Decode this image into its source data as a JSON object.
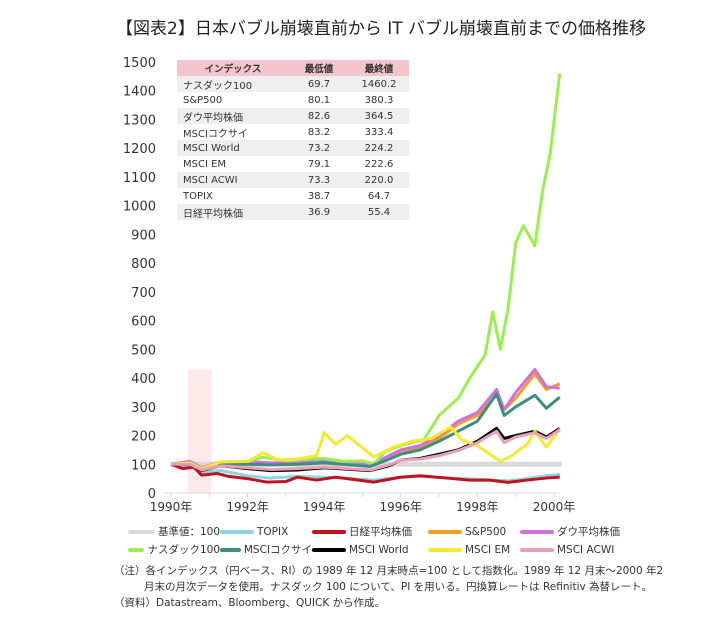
{
  "title": "【図表2】日本バブル崩壊直前から IT バブル崩壊直前までの価格推移",
  "table": {
    "headers": [
      "インデックス",
      "最低値",
      "最終値"
    ],
    "rows": [
      [
        "ナスダック100",
        "69.7",
        "1460.2"
      ],
      [
        "S&P500",
        "80.1",
        "380.3"
      ],
      [
        "ダウ平均株価",
        "82.6",
        "364.5"
      ],
      [
        "MSCIコクサイ",
        "83.2",
        "333.4"
      ],
      [
        "MSCI World",
        "73.2",
        "224.2"
      ],
      [
        "MSCI EM",
        "79.1",
        "222.6"
      ],
      [
        "MSCI ACWI",
        "73.3",
        "220.0"
      ],
      [
        "TOPIX",
        "38.7",
        "64.7"
      ],
      [
        "日経平均株価",
        "36.9",
        "55.4"
      ]
    ]
  },
  "notes": [
    "（注）各インデックス（円ベース、RI）の 1989 年 12 月末時点=100 として指数化。1989 年 12 月末～2000 年2",
    "月末の月次データを使用。ナスダック 100 について、PI を用いる。円換算レートは Refinitiv 為替レート。",
    "（資料）Datastream、Bloomberg、QUICK から作成。"
  ],
  "chart_data": {
    "type": "line",
    "ylim": [
      0,
      1500
    ],
    "yticks": [
      0,
      100,
      200,
      300,
      400,
      500,
      600,
      700,
      800,
      900,
      1000,
      1100,
      1200,
      1300,
      1400,
      1500
    ],
    "xlim": [
      1990,
      2000.2
    ],
    "xticks": [
      "1990年",
      "1992年",
      "1994年",
      "1996年",
      "1998年",
      "2000年"
    ],
    "xtick_values": [
      1990,
      1992,
      1994,
      1996,
      1998,
      2000
    ],
    "shaded_region": [
      1990.45,
      1991.05
    ],
    "shade_color": "#fde8ea",
    "legend_placement": "bottom",
    "series": [
      {
        "name": "基準値：100",
        "color": "#d9d9d9",
        "points": [
          [
            1990,
            100
          ],
          [
            2000.2,
            100
          ]
        ]
      },
      {
        "name": "TOPIX",
        "color": "#8fd3e8",
        "points": [
          [
            1990,
            100
          ],
          [
            1990.5,
            90
          ],
          [
            1990.8,
            72
          ],
          [
            1991.3,
            78
          ],
          [
            1992,
            60
          ],
          [
            1992.6,
            52
          ],
          [
            1993.3,
            58
          ],
          [
            1994,
            55
          ],
          [
            1994.5,
            52
          ],
          [
            1995.3,
            45
          ],
          [
            1996,
            55
          ],
          [
            1996.5,
            58
          ],
          [
            1997.3,
            52
          ],
          [
            1998,
            48
          ],
          [
            1998.8,
            42
          ],
          [
            1999.3,
            50
          ],
          [
            1999.8,
            60
          ],
          [
            2000.15,
            64.7
          ]
        ]
      },
      {
        "name": "日経平均株価",
        "color": "#c0141c",
        "points": [
          [
            1990,
            100
          ],
          [
            1990.3,
            85
          ],
          [
            1990.6,
            90
          ],
          [
            1990.8,
            62
          ],
          [
            1991.2,
            68
          ],
          [
            1991.5,
            58
          ],
          [
            1992,
            50
          ],
          [
            1992.5,
            38
          ],
          [
            1993,
            40
          ],
          [
            1993.3,
            55
          ],
          [
            1993.8,
            45
          ],
          [
            1994.3,
            55
          ],
          [
            1995.3,
            38
          ],
          [
            1996,
            55
          ],
          [
            1996.5,
            60
          ],
          [
            1997.2,
            52
          ],
          [
            1997.8,
            45
          ],
          [
            1998.3,
            45
          ],
          [
            1998.8,
            37
          ],
          [
            1999.3,
            45
          ],
          [
            1999.8,
            52
          ],
          [
            2000.15,
            55.4
          ]
        ]
      },
      {
        "name": "S&P500",
        "color": "#f0a020",
        "points": [
          [
            1990,
            100
          ],
          [
            1990.5,
            108
          ],
          [
            1990.8,
            85
          ],
          [
            1991.3,
            105
          ],
          [
            1992,
            105
          ],
          [
            1992.6,
            100
          ],
          [
            1993.3,
            100
          ],
          [
            1994,
            105
          ],
          [
            1995.2,
            95
          ],
          [
            1995.7,
            125
          ],
          [
            1996,
            145
          ],
          [
            1996.5,
            160
          ],
          [
            1997,
            190
          ],
          [
            1997.5,
            240
          ],
          [
            1998,
            270
          ],
          [
            1998.5,
            340
          ],
          [
            1998.7,
            290
          ],
          [
            1999,
            330
          ],
          [
            1999.5,
            415
          ],
          [
            1999.8,
            360
          ],
          [
            2000.15,
            380.3
          ]
        ]
      },
      {
        "name": "ダウ平均株価",
        "color": "#d070e0",
        "points": [
          [
            1990,
            100
          ],
          [
            1990.5,
            110
          ],
          [
            1990.8,
            88
          ],
          [
            1991.3,
            108
          ],
          [
            1992,
            110
          ],
          [
            1992.6,
            105
          ],
          [
            1993.3,
            108
          ],
          [
            1994,
            112
          ],
          [
            1995.2,
            98
          ],
          [
            1995.7,
            130
          ],
          [
            1996,
            150
          ],
          [
            1996.5,
            165
          ],
          [
            1997,
            200
          ],
          [
            1997.5,
            250
          ],
          [
            1998,
            280
          ],
          [
            1998.5,
            360
          ],
          [
            1998.7,
            290
          ],
          [
            1999,
            350
          ],
          [
            1999.5,
            430
          ],
          [
            1999.8,
            370
          ],
          [
            2000.15,
            364.5
          ]
        ]
      },
      {
        "name": "ナスダック100",
        "color": "#99ee50",
        "points": [
          [
            1990,
            100
          ],
          [
            1990.5,
            105
          ],
          [
            1990.8,
            80
          ],
          [
            1991.2,
            100
          ],
          [
            1992,
            110
          ],
          [
            1992.4,
            125
          ],
          [
            1993,
            112
          ],
          [
            1993.6,
            118
          ],
          [
            1994,
            120
          ],
          [
            1994.5,
            110
          ],
          [
            1995,
            112
          ],
          [
            1995.3,
            100
          ],
          [
            1995.6,
            145
          ],
          [
            1996,
            165
          ],
          [
            1996.6,
            185
          ],
          [
            1997,
            270
          ],
          [
            1997.5,
            330
          ],
          [
            1997.8,
            400
          ],
          [
            1998.2,
            480
          ],
          [
            1998.4,
            630
          ],
          [
            1998.6,
            500
          ],
          [
            1998.8,
            640
          ],
          [
            1999,
            870
          ],
          [
            1999.2,
            930
          ],
          [
            1999.5,
            860
          ],
          [
            1999.7,
            1050
          ],
          [
            1999.9,
            1180
          ],
          [
            2000.15,
            1460.2
          ]
        ]
      },
      {
        "name": "MSCIコクサイ",
        "color": "#3a9080",
        "points": [
          [
            1990,
            100
          ],
          [
            1990.5,
            105
          ],
          [
            1990.8,
            85
          ],
          [
            1991.3,
            100
          ],
          [
            1992,
            100
          ],
          [
            1992.6,
            98
          ],
          [
            1993.3,
            100
          ],
          [
            1994,
            105
          ],
          [
            1995.2,
            92
          ],
          [
            1995.7,
            118
          ],
          [
            1996,
            135
          ],
          [
            1996.5,
            150
          ],
          [
            1997,
            180
          ],
          [
            1997.5,
            215
          ],
          [
            1998,
            250
          ],
          [
            1998.5,
            345
          ],
          [
            1998.7,
            270
          ],
          [
            1999,
            300
          ],
          [
            1999.5,
            340
          ],
          [
            1999.8,
            295
          ],
          [
            2000.15,
            333.4
          ]
        ]
      },
      {
        "name": "MSCI World",
        "color": "#000000",
        "points": [
          [
            1990,
            100
          ],
          [
            1990.5,
            100
          ],
          [
            1990.8,
            78
          ],
          [
            1991.3,
            95
          ],
          [
            1992,
            85
          ],
          [
            1992.6,
            78
          ],
          [
            1993.3,
            80
          ],
          [
            1994,
            88
          ],
          [
            1995.2,
            78
          ],
          [
            1995.7,
            95
          ],
          [
            1996,
            115
          ],
          [
            1996.5,
            120
          ],
          [
            1997,
            135
          ],
          [
            1997.5,
            150
          ],
          [
            1998,
            180
          ],
          [
            1998.5,
            225
          ],
          [
            1998.7,
            190
          ],
          [
            1999,
            200
          ],
          [
            1999.5,
            215
          ],
          [
            1999.8,
            195
          ],
          [
            2000.15,
            224.2
          ]
        ]
      },
      {
        "name": "MSCI EM",
        "color": "#f5ea30",
        "points": [
          [
            1990,
            100
          ],
          [
            1990.5,
            105
          ],
          [
            1990.8,
            85
          ],
          [
            1991.3,
            108
          ],
          [
            1992,
            110
          ],
          [
            1992.4,
            140
          ],
          [
            1992.8,
            115
          ],
          [
            1993.3,
            118
          ],
          [
            1993.8,
            130
          ],
          [
            1994,
            210
          ],
          [
            1994.3,
            170
          ],
          [
            1994.6,
            200
          ],
          [
            1995.3,
            125
          ],
          [
            1995.8,
            160
          ],
          [
            1996.3,
            180
          ],
          [
            1996.8,
            190
          ],
          [
            1997.3,
            230
          ],
          [
            1997.6,
            185
          ],
          [
            1998,
            165
          ],
          [
            1998.6,
            110
          ],
          [
            1998.9,
            130
          ],
          [
            1999.3,
            170
          ],
          [
            1999.5,
            215
          ],
          [
            1999.8,
            160
          ],
          [
            2000.15,
            222.6
          ]
        ]
      },
      {
        "name": "MSCI ACWI",
        "color": "#e8a0b8",
        "points": [
          [
            1990,
            100
          ],
          [
            1990.5,
            100
          ],
          [
            1990.8,
            80
          ],
          [
            1991.3,
            95
          ],
          [
            1992,
            88
          ],
          [
            1992.6,
            82
          ],
          [
            1993.3,
            85
          ],
          [
            1994,
            90
          ],
          [
            1995.2,
            80
          ],
          [
            1995.7,
            98
          ],
          [
            1996,
            115
          ],
          [
            1996.5,
            118
          ],
          [
            1997,
            130
          ],
          [
            1997.5,
            148
          ],
          [
            1998,
            175
          ],
          [
            1998.5,
            215
          ],
          [
            1998.7,
            175
          ],
          [
            1999,
            195
          ],
          [
            1999.5,
            210
          ],
          [
            1999.8,
            190
          ],
          [
            2000.15,
            220.0
          ]
        ]
      }
    ]
  }
}
